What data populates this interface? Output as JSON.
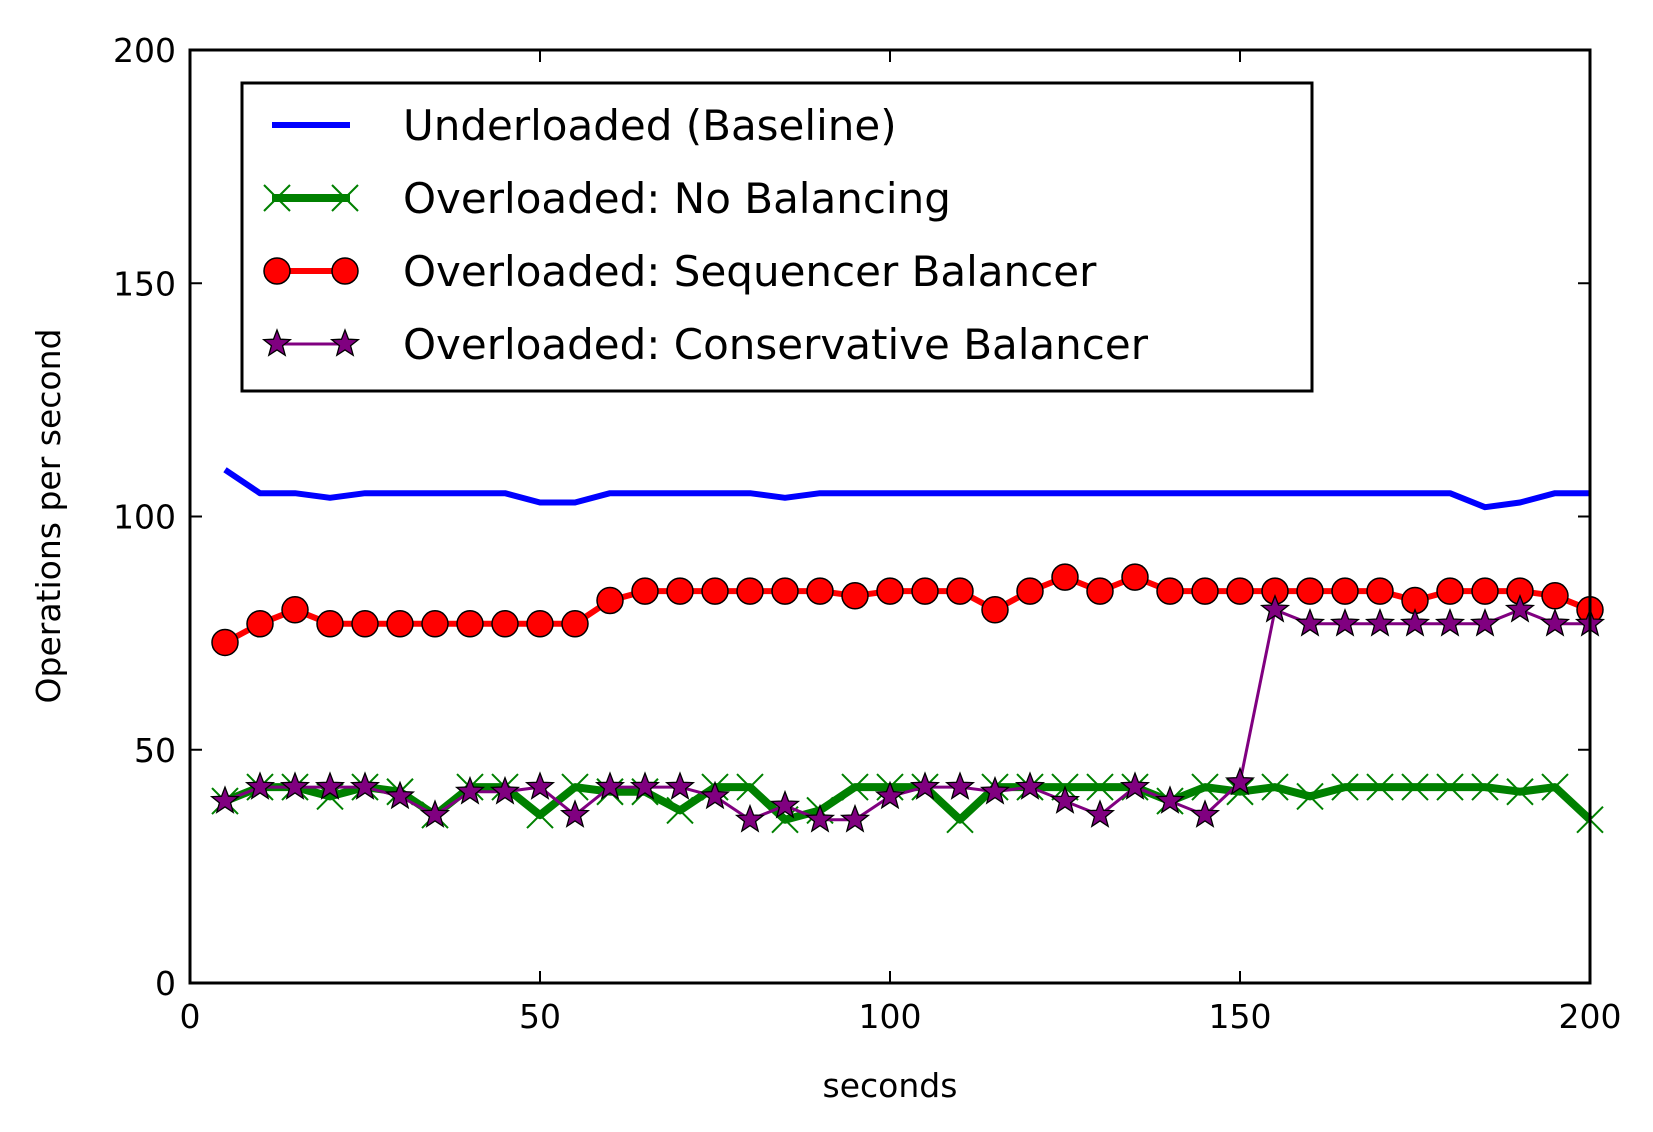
{
  "chart_data": {
    "type": "line",
    "title": "",
    "xlabel": "seconds",
    "ylabel": "Operations per second",
    "xlim": [
      0,
      200
    ],
    "ylim": [
      0,
      200
    ],
    "xticks": [
      0,
      50,
      100,
      150,
      200
    ],
    "yticks": [
      0,
      50,
      100,
      150,
      200
    ],
    "grid": false,
    "legend_position": "upper-left",
    "x": [
      5,
      10,
      15,
      20,
      25,
      30,
      35,
      40,
      45,
      50,
      55,
      60,
      65,
      70,
      75,
      80,
      85,
      90,
      95,
      100,
      105,
      110,
      115,
      120,
      125,
      130,
      135,
      140,
      145,
      150,
      155,
      160,
      165,
      170,
      175,
      180,
      185,
      190,
      195,
      200
    ],
    "series": [
      {
        "name": "Underloaded (Baseline)",
        "color": "#0000ff",
        "marker": "none",
        "values": [
          110,
          105,
          105,
          104,
          105,
          105,
          105,
          105,
          105,
          103,
          103,
          105,
          105,
          105,
          105,
          105,
          104,
          105,
          105,
          105,
          105,
          105,
          105,
          105,
          105,
          105,
          105,
          105,
          105,
          105,
          105,
          105,
          105,
          105,
          105,
          105,
          102,
          103,
          105,
          105
        ]
      },
      {
        "name": "Overloaded: No Balancing",
        "color": "#008000",
        "marker": "x",
        "values": [
          39,
          42,
          42,
          40,
          42,
          41,
          36,
          42,
          42,
          36,
          42,
          41,
          41,
          37,
          42,
          42,
          35,
          37,
          42,
          42,
          42,
          35,
          42,
          42,
          42,
          42,
          42,
          39,
          42,
          41,
          42,
          40,
          42,
          42,
          42,
          42,
          42,
          41,
          42,
          35
        ]
      },
      {
        "name": "Overloaded: Sequencer Balancer",
        "color": "#ff0000",
        "marker": "circle",
        "values": [
          73,
          77,
          80,
          77,
          77,
          77,
          77,
          77,
          77,
          77,
          77,
          82,
          84,
          84,
          84,
          84,
          84,
          84,
          83,
          84,
          84,
          84,
          80,
          84,
          87,
          84,
          87,
          84,
          84,
          84,
          84,
          84,
          84,
          84,
          82,
          84,
          84,
          84,
          83,
          80
        ]
      },
      {
        "name": "Overloaded: Conservative Balancer",
        "color": "#800080",
        "marker": "star",
        "values": [
          39,
          42,
          42,
          42,
          42,
          40,
          36,
          41,
          41,
          42,
          36,
          42,
          42,
          42,
          40,
          35,
          38,
          35,
          35,
          40,
          42,
          42,
          41,
          42,
          39,
          36,
          42,
          39,
          36,
          43,
          80,
          77,
          77,
          77,
          77,
          77,
          77,
          80,
          77,
          77
        ]
      }
    ]
  }
}
